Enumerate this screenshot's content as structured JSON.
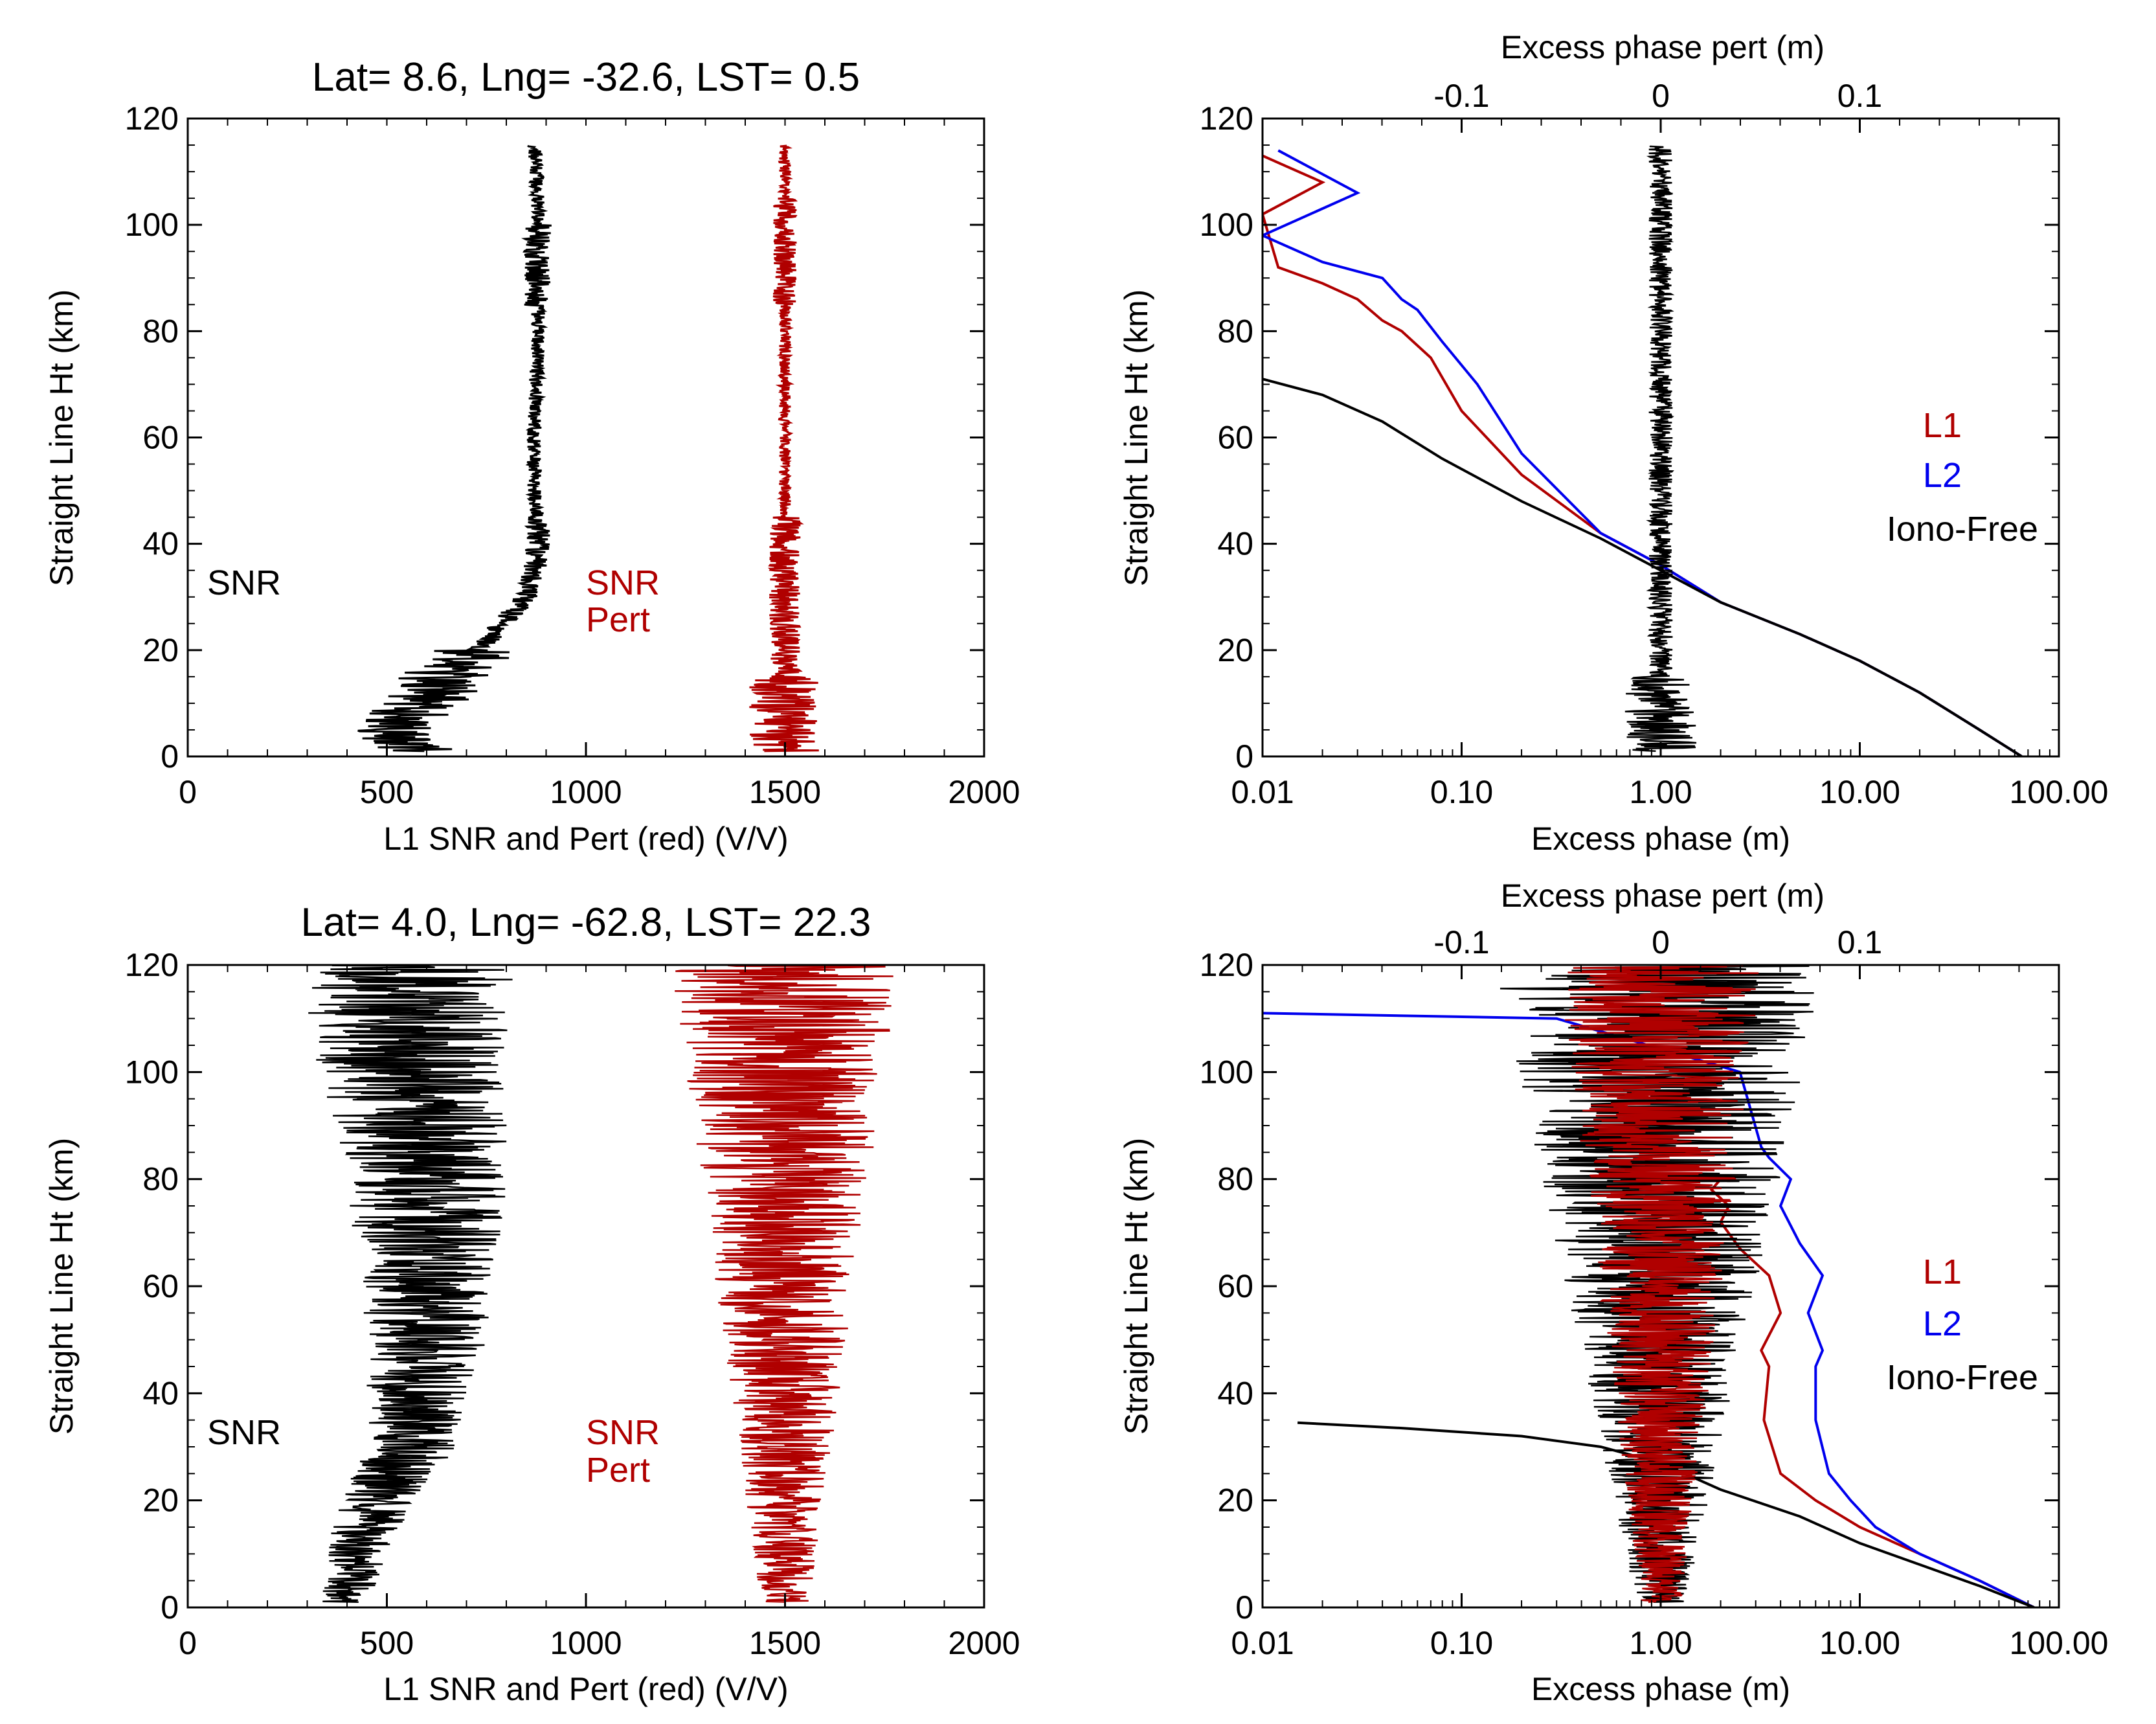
{
  "colors": {
    "snr": "#000000",
    "pert": "#b00000",
    "l1": "#b00000",
    "l2": "#0000ee",
    "iono_free": "#000000"
  },
  "chart_data": [
    {
      "id": "tl",
      "type": "line",
      "title": "Lat=  8.6, Lng= -32.6, LST=  0.5",
      "xlabel": "L1 SNR and Pert (red) (V/V)",
      "ylabel": "Straight Line Ht (km)",
      "xlim": [
        0,
        2000
      ],
      "ylim": [
        0,
        120
      ],
      "xticks": [
        0,
        500,
        1000,
        1500,
        2000
      ],
      "xticklabels": [
        "0",
        "500",
        "1000",
        "1500",
        "2000"
      ],
      "yticks": [
        0,
        20,
        40,
        60,
        80,
        100,
        120
      ],
      "yticklabels": [
        "0",
        "20",
        "40",
        "60",
        "80",
        "100",
        "120"
      ],
      "annotations": {
        "snr": "SNR",
        "pert_1": "SNR",
        "pert_2": "Pert"
      },
      "series": [
        {
          "key": "snr",
          "color": "#000000",
          "y": [
            1,
            5,
            10,
            15,
            20,
            25,
            30,
            35,
            40,
            45,
            50,
            60,
            70,
            80,
            90,
            100,
            105,
            110,
            115
          ],
          "values": [
            560,
            500,
            600,
            640,
            730,
            790,
            850,
            870,
            880,
            880,
            870,
            870,
            875,
            880,
            880,
            880,
            880,
            875,
            870
          ]
        },
        {
          "key": "pert",
          "color": "#b00000",
          "y": [
            1,
            10,
            20,
            30,
            40,
            50,
            60,
            70,
            80,
            90,
            100,
            110,
            115
          ],
          "values": [
            1500,
            1500,
            1500,
            1500,
            1500,
            1500,
            1500,
            1500,
            1500,
            1500,
            1500,
            1500,
            1500
          ]
        }
      ]
    },
    {
      "id": "tr",
      "type": "line",
      "xlabel": "Excess phase (m)",
      "x2label": "Excess phase pert (m)",
      "ylabel": "Straight Line Ht (km)",
      "xscale": "log",
      "xlim": [
        0.01,
        100
      ],
      "ylim": [
        0,
        120
      ],
      "xticks": [
        0.01,
        0.1,
        1,
        10,
        100
      ],
      "xticklabels": [
        "0.01",
        "0.10",
        "1.00",
        "10.00",
        "100.00"
      ],
      "x2lim": [
        -0.2,
        0.2
      ],
      "x2ticks": [
        -0.1,
        0,
        0.1
      ],
      "x2ticklabels": [
        "-0.1",
        "0",
        "0.1"
      ],
      "yticks": [
        0,
        20,
        40,
        60,
        80,
        100,
        120
      ],
      "yticklabels": [
        "0",
        "20",
        "40",
        "60",
        "80",
        "100",
        "120"
      ],
      "legend": {
        "placement": "right",
        "entries": [
          "L1",
          "L2",
          "Iono-Free"
        ]
      },
      "series": [
        {
          "name": "L1",
          "color": "#b00000",
          "x": [
            65,
            40,
            20,
            10,
            5,
            2,
            1,
            0.5,
            0.2,
            0.1,
            0.07,
            0.05,
            0.04,
            0.03,
            0.02,
            0.012,
            0.01,
            0.02,
            0.01
          ],
          "y": [
            0,
            5,
            12,
            18,
            23,
            29,
            36,
            42,
            53,
            65,
            75,
            80,
            82,
            86,
            89,
            92,
            102,
            108,
            113
          ]
        },
        {
          "name": "L2",
          "color": "#0000ee",
          "x": [
            65,
            40,
            20,
            10,
            5,
            2,
            1,
            0.5,
            0.2,
            0.12,
            0.08,
            0.06,
            0.05,
            0.04,
            0.02,
            0.01,
            0.03,
            0.012
          ],
          "y": [
            0,
            5,
            12,
            18,
            23,
            29,
            36,
            42,
            57,
            70,
            78,
            84,
            86,
            90,
            93,
            98,
            106,
            114
          ]
        },
        {
          "name": "Iono-Free",
          "color": "#000000",
          "x": [
            65,
            40,
            20,
            10,
            5,
            2,
            1,
            0.5,
            0.2,
            0.08,
            0.04,
            0.02,
            0.01
          ],
          "y": [
            0,
            5,
            12,
            18,
            23,
            29,
            35,
            41,
            48,
            56,
            63,
            68,
            71
          ]
        },
        {
          "name": "Iono-Free pert",
          "axis": "x2",
          "color": "#000000",
          "y": [
            1,
            10,
            20,
            30,
            40,
            50,
            60,
            70,
            80,
            90,
            100,
            110,
            115
          ],
          "values": [
            0,
            0,
            0,
            0,
            0,
            0,
            0,
            0,
            0,
            0,
            0,
            0,
            0
          ]
        }
      ]
    },
    {
      "id": "bl",
      "type": "line",
      "title": "Lat=  4.0, Lng= -62.8, LST= 22.3",
      "xlabel": "L1 SNR and Pert (red) (V/V)",
      "ylabel": "Straight Line Ht (km)",
      "xlim": [
        0,
        2000
      ],
      "ylim": [
        0,
        120
      ],
      "xticks": [
        0,
        500,
        1000,
        1500,
        2000
      ],
      "xticklabels": [
        "0",
        "500",
        "1000",
        "1500",
        "2000"
      ],
      "yticks": [
        0,
        20,
        40,
        60,
        80,
        100,
        120
      ],
      "yticklabels": [
        "0",
        "20",
        "40",
        "60",
        "80",
        "100",
        "120"
      ],
      "annotations": {
        "snr": "SNR",
        "pert_1": "SNR",
        "pert_2": "Pert"
      },
      "series": [
        {
          "key": "snr",
          "color": "#000000",
          "y": [
            1,
            10,
            20,
            30,
            40,
            50,
            60,
            70,
            80,
            90,
            100,
            110,
            120
          ],
          "values": [
            400,
            420,
            480,
            560,
            580,
            600,
            600,
            600,
            600,
            580,
            560,
            560,
            580
          ]
        },
        {
          "key": "pert",
          "color": "#b00000",
          "y": [
            1,
            10,
            20,
            30,
            40,
            50,
            60,
            70,
            80,
            90,
            100,
            110,
            120
          ],
          "values": [
            1500,
            1500,
            1500,
            1500,
            1500,
            1500,
            1500,
            1500,
            1500,
            1500,
            1500,
            1500,
            1500
          ]
        }
      ]
    },
    {
      "id": "br",
      "type": "line",
      "xlabel": "Excess phase (m)",
      "x2label": "Excess phase pert (m)",
      "ylabel": "Straight Line Ht (km)",
      "xscale": "log",
      "xlim": [
        0.01,
        100
      ],
      "ylim": [
        0,
        120
      ],
      "xticks": [
        0.01,
        0.1,
        1,
        10,
        100
      ],
      "xticklabels": [
        "0.01",
        "0.10",
        "1.00",
        "10.00",
        "100.00"
      ],
      "x2lim": [
        -0.2,
        0.2
      ],
      "x2ticks": [
        -0.1,
        0,
        0.1
      ],
      "x2ticklabels": [
        "-0.1",
        "0",
        "0.1"
      ],
      "yticks": [
        0,
        20,
        40,
        60,
        80,
        100,
        120
      ],
      "yticklabels": [
        "0",
        "20",
        "40",
        "60",
        "80",
        "100",
        "120"
      ],
      "legend": {
        "placement": "right",
        "entries": [
          "L1",
          "L2",
          "Iono-Free"
        ]
      },
      "series": [
        {
          "name": "L1",
          "color": "#b00000",
          "x": [
            75,
            40,
            20,
            10,
            6,
            4,
            3.3,
            3.5,
            3.2,
            4,
            3.5,
            2.5,
            2.0,
            2.2,
            1.8,
            2.0
          ],
          "y": [
            0,
            5,
            10,
            15,
            20,
            25,
            35,
            45,
            48,
            55,
            62,
            67,
            72,
            75,
            78,
            80
          ]
        },
        {
          "name": "L2",
          "color": "#0000ee",
          "x": [
            75,
            40,
            20,
            12,
            9,
            7,
            6,
            6,
            6.5,
            5.5,
            6.5,
            5,
            4,
            4.5,
            3.5,
            3.2,
            2.5,
            0.3,
            0.01
          ],
          "y": [
            0,
            5,
            10,
            15,
            20,
            25,
            35,
            45,
            48,
            55,
            62,
            68,
            75,
            80,
            84,
            86,
            100,
            110,
            111
          ]
        },
        {
          "name": "Iono-Free",
          "color": "#000000",
          "x": [
            75,
            40,
            20,
            10,
            5,
            2,
            1,
            0.5,
            0.2,
            0.05,
            0.015
          ],
          "y": [
            0,
            4,
            8,
            12,
            17,
            22,
            27,
            30,
            32,
            33.5,
            34.5
          ]
        },
        {
          "name": "Iono-Free pert",
          "axis": "x2",
          "color": "#000000",
          "y": [
            1,
            10,
            20,
            30,
            40,
            50,
            60,
            70,
            80,
            90,
            100,
            110,
            120
          ],
          "values": [
            0,
            0,
            0,
            0,
            0,
            0,
            0,
            0,
            0,
            0,
            0,
            0,
            0
          ]
        },
        {
          "name": "L1 pert",
          "axis": "x2",
          "color": "#b00000",
          "y": [
            1,
            10,
            20,
            30,
            40,
            50,
            60,
            70,
            80,
            90,
            100,
            110,
            120
          ],
          "values": [
            0,
            0,
            0,
            0,
            0,
            0,
            0,
            0,
            0,
            0,
            0,
            0,
            0
          ]
        }
      ]
    }
  ]
}
